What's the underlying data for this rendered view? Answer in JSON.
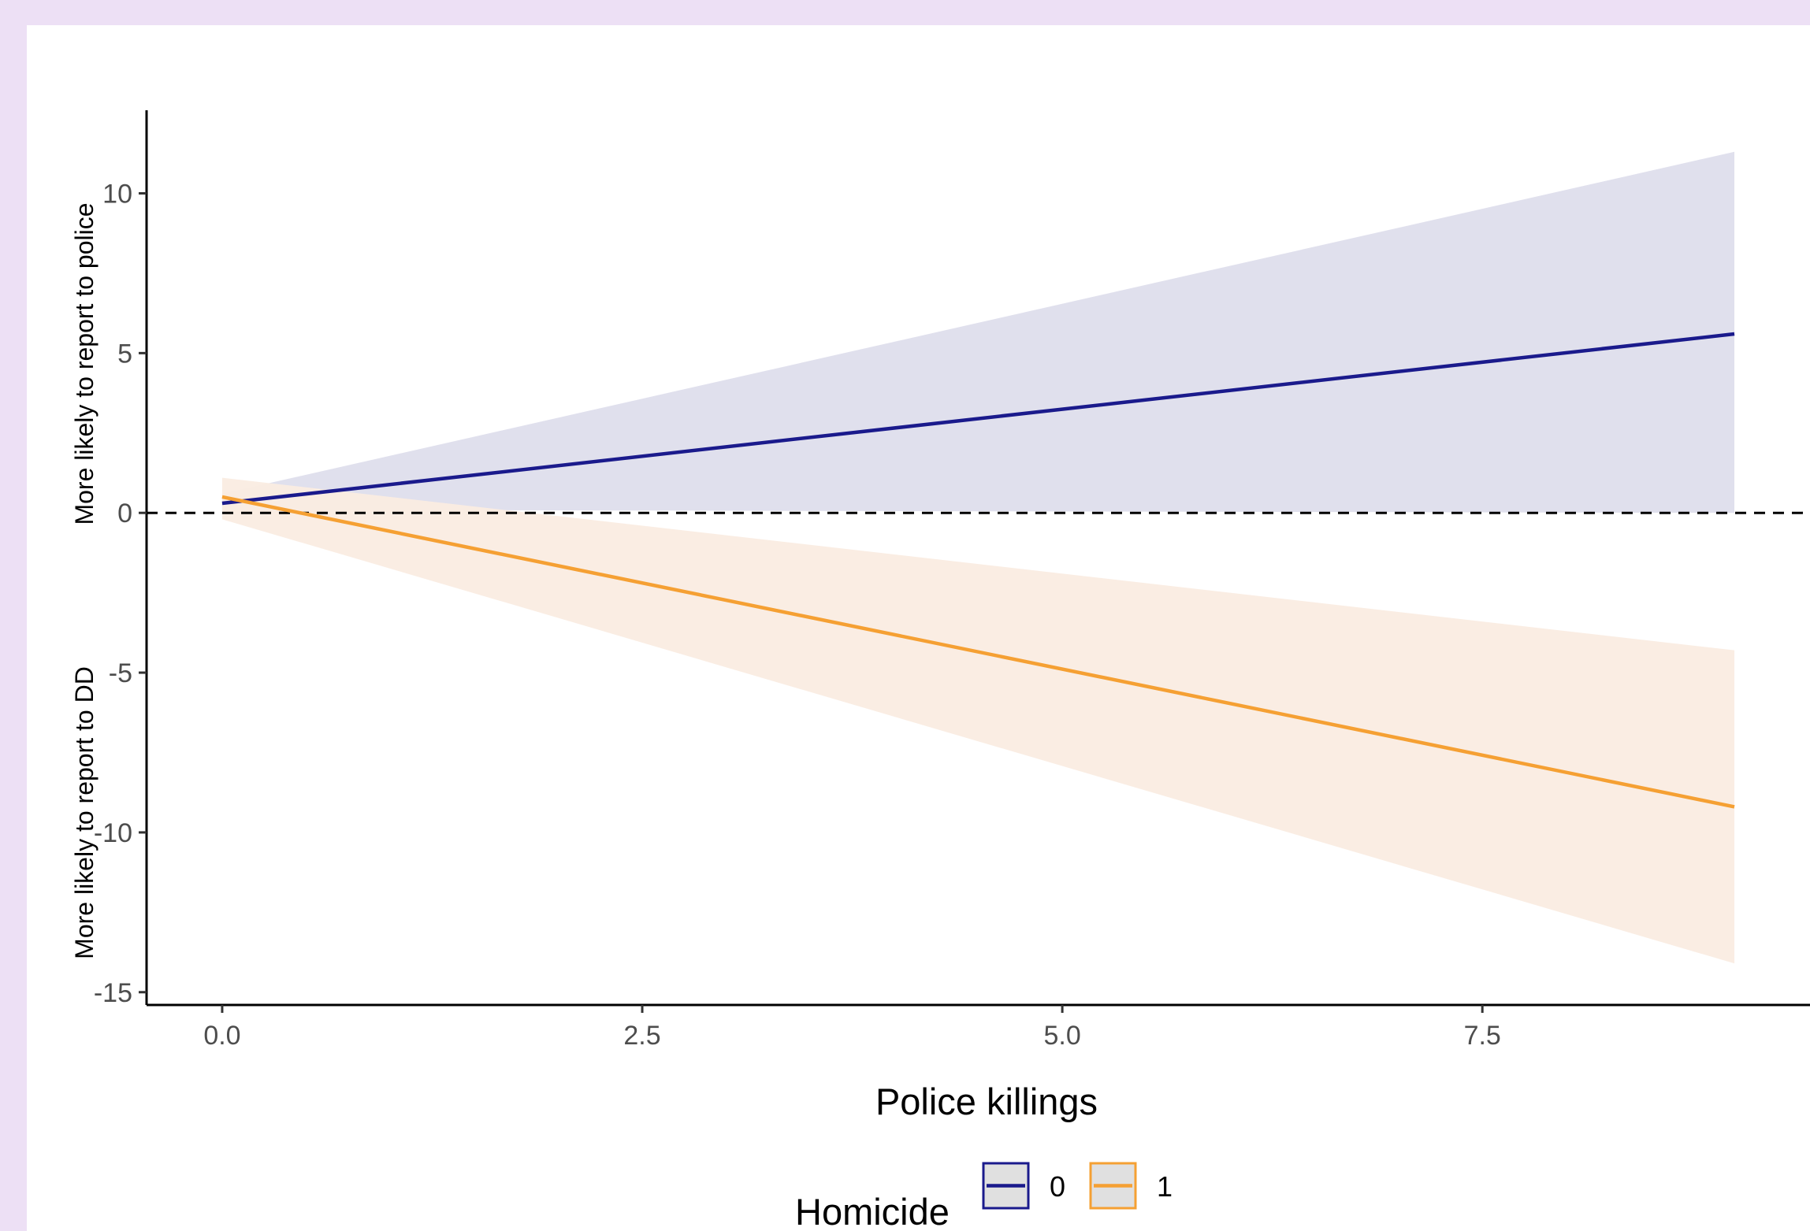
{
  "chart_data": {
    "type": "line",
    "xlabel": "Police killings",
    "ylabel_upper": "More likely to report to police",
    "ylabel_lower": "More likely to report to DD",
    "xlim": [
      -0.45,
      9.45
    ],
    "ylim": [
      -15.4,
      12.6
    ],
    "x_ticks": [
      0,
      2.5,
      5,
      7.5
    ],
    "x_tick_labels": [
      "0.0",
      "2.5",
      "5.0",
      "7.5"
    ],
    "y_ticks": [
      -15,
      -10,
      -5,
      0,
      5,
      10
    ],
    "y_tick_labels": [
      "-15",
      "-10",
      "-5",
      "0",
      "5",
      "10"
    ],
    "reference_line": {
      "y": 0,
      "style": "dashed"
    },
    "grid": false,
    "legend": {
      "title": "Homicide",
      "position": "bottom"
    },
    "series": [
      {
        "name": "0",
        "color": "#1a1a8c",
        "ribbon_color": "#dedeec",
        "x": [
          0,
          9
        ],
        "y": [
          0.3,
          5.6
        ],
        "lower": [
          0.1,
          0.0
        ],
        "upper": [
          0.6,
          11.3
        ]
      },
      {
        "name": "1",
        "color": "#f5a033",
        "ribbon_color": "#faece2",
        "x": [
          0,
          9
        ],
        "y": [
          0.5,
          -9.2
        ],
        "lower": [
          -0.2,
          -14.1
        ],
        "upper": [
          1.1,
          -4.3
        ]
      }
    ]
  }
}
